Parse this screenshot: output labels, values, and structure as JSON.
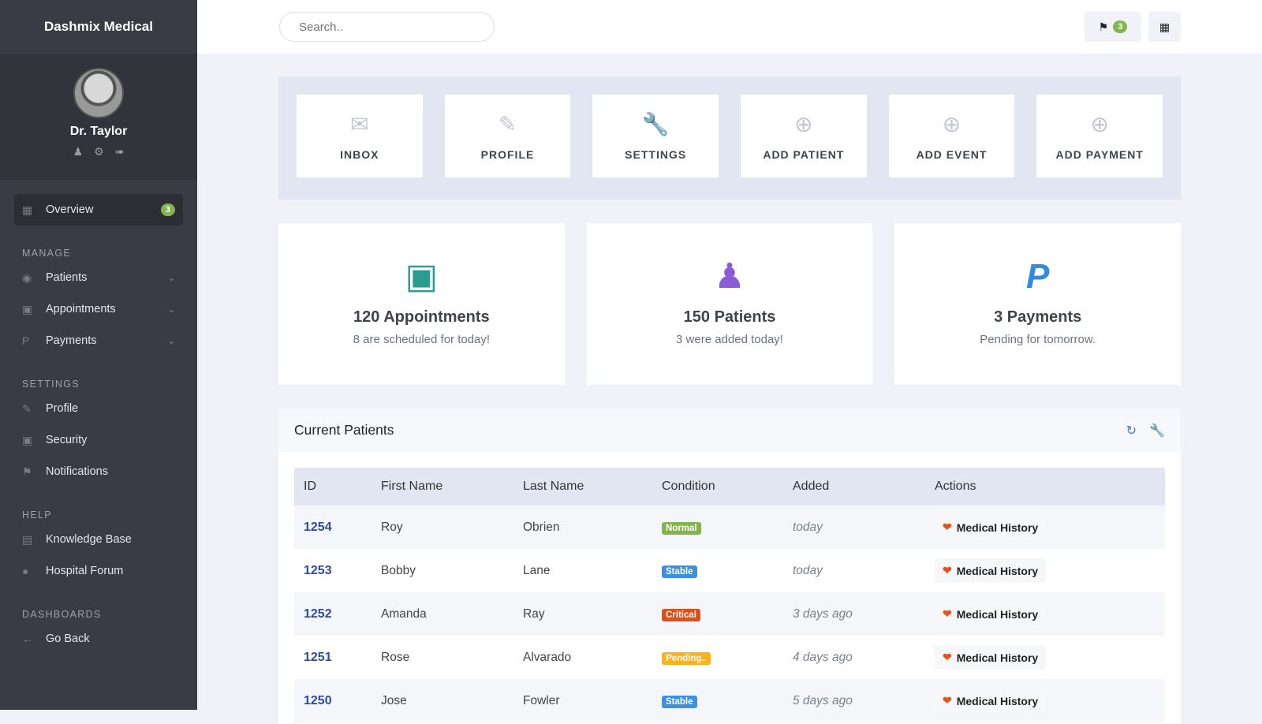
{
  "sidebar": {
    "brand": "Dashmix Medical",
    "user": "Dr. Taylor",
    "overview": {
      "label": "Overview",
      "badge": "3"
    },
    "sections": [
      {
        "heading": "MANAGE",
        "items": [
          {
            "label": "Patients",
            "icon": "user-circle-icon",
            "chev": true
          },
          {
            "label": "Appointments",
            "icon": "calendar-icon",
            "chev": true
          },
          {
            "label": "Payments",
            "icon": "paypal-icon",
            "chev": true
          }
        ]
      },
      {
        "heading": "SETTINGS",
        "items": [
          {
            "label": "Profile",
            "icon": "pencil-icon"
          },
          {
            "label": "Security",
            "icon": "lock-icon"
          },
          {
            "label": "Notifications",
            "icon": "flag-icon"
          }
        ]
      },
      {
        "heading": "HELP",
        "items": [
          {
            "label": "Knowledge Base",
            "icon": "book-icon"
          },
          {
            "label": "Hospital Forum",
            "icon": "comments-icon"
          }
        ]
      },
      {
        "heading": "DASHBOARDS",
        "items": [
          {
            "label": "Go Back",
            "icon": "arrow-left-icon"
          }
        ]
      }
    ]
  },
  "header": {
    "search_placeholder": "Search..",
    "flag_count": "3"
  },
  "shortcuts": [
    {
      "label": "INBOX",
      "icon": "envelope-icon"
    },
    {
      "label": "PROFILE",
      "icon": "pencil-icon"
    },
    {
      "label": "SETTINGS",
      "icon": "wrench-icon"
    },
    {
      "label": "ADD PATIENT",
      "icon": "plus-circle-icon"
    },
    {
      "label": "ADD EVENT",
      "icon": "plus-circle-icon"
    },
    {
      "label": "ADD PAYMENT",
      "icon": "plus-circle-icon"
    }
  ],
  "stats": [
    {
      "title": "120 Appointments",
      "sub": "8 are scheduled for today!",
      "icon": "calendar-icon",
      "color": "#2a9d8f"
    },
    {
      "title": "150 Patients",
      "sub": "3 were added today!",
      "icon": "user-doctor-icon",
      "color": "#8a5cd6"
    },
    {
      "title": "3 Payments",
      "sub": "Pending for tomorrow.",
      "icon": "paypal-icon",
      "color": "#2f8ae0"
    }
  ],
  "patients": {
    "title": "Current Patients",
    "columns": [
      "ID",
      "First Name",
      "Last Name",
      "Condition",
      "Added",
      "Actions"
    ],
    "rows": [
      {
        "id": "1254",
        "first": "Roy",
        "last": "Obrien",
        "condition": "Normal",
        "color": "#82b54b",
        "added": "today",
        "action": "Medical History"
      },
      {
        "id": "1253",
        "first": "Bobby",
        "last": "Lane",
        "condition": "Stable",
        "color": "#3c90df",
        "added": "today",
        "action": "Medical History"
      },
      {
        "id": "1252",
        "first": "Amanda",
        "last": "Ray",
        "condition": "Critical",
        "color": "#e04f1a",
        "added": "3 days ago",
        "action": "Medical History"
      },
      {
        "id": "1251",
        "first": "Rose",
        "last": "Alvarado",
        "condition": "Pending..",
        "color": "#ffb119",
        "added": "4 days ago",
        "action": "Medical History"
      },
      {
        "id": "1250",
        "first": "Jose",
        "last": "Fowler",
        "condition": "Stable",
        "color": "#3c90df",
        "added": "5 days ago",
        "action": "Medical History"
      }
    ]
  }
}
